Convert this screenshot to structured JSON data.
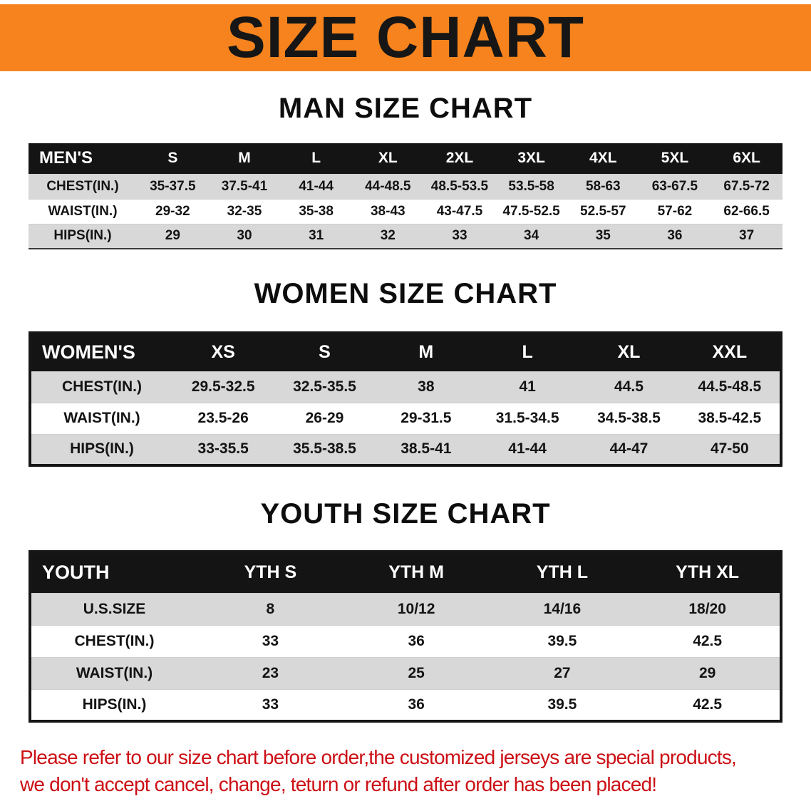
{
  "banner": {
    "title": "SIZE CHART"
  },
  "colors": {
    "banner_bg": "#f6831d",
    "header_bg": "#141414",
    "row_alt": "#d8d8d8",
    "red": "#cc1016"
  },
  "men": {
    "heading": "MAN SIZE CHART",
    "table": {
      "header": [
        "MEN'S",
        "S",
        "M",
        "L",
        "XL",
        "2XL",
        "3XL",
        "4XL",
        "5XL",
        "6XL"
      ],
      "rows": [
        {
          "label": "CHEST(IN.)",
          "values": [
            "35-37.5",
            "37.5-41",
            "41-44",
            "44-48.5",
            "48.5-53.5",
            "53.5-58",
            "58-63",
            "63-67.5",
            "67.5-72"
          ]
        },
        {
          "label": "WAIST(IN.)",
          "values": [
            "29-32",
            "32-35",
            "35-38",
            "38-43",
            "43-47.5",
            "47.5-52.5",
            "52.5-57",
            "57-62",
            "62-66.5"
          ]
        },
        {
          "label": "HIPS(IN.)",
          "values": [
            "29",
            "30",
            "31",
            "32",
            "33",
            "34",
            "35",
            "36",
            "37"
          ]
        }
      ]
    }
  },
  "women": {
    "heading": "WOMEN SIZE CHART",
    "table": {
      "header": [
        "WOMEN'S",
        "XS",
        "S",
        "M",
        "L",
        "XL",
        "XXL"
      ],
      "rows": [
        {
          "label": "CHEST(IN.)",
          "values": [
            "29.5-32.5",
            "32.5-35.5",
            "38",
            "41",
            "44.5",
            "44.5-48.5"
          ]
        },
        {
          "label": "WAIST(IN.)",
          "values": [
            "23.5-26",
            "26-29",
            "29-31.5",
            "31.5-34.5",
            "34.5-38.5",
            "38.5-42.5"
          ]
        },
        {
          "label": "HIPS(IN.)",
          "values": [
            "33-35.5",
            "35.5-38.5",
            "38.5-41",
            "41-44",
            "44-47",
            "47-50"
          ]
        }
      ]
    }
  },
  "youth": {
    "heading": "YOUTH SIZE CHART",
    "table": {
      "header": [
        "YOUTH",
        "YTH S",
        "YTH M",
        "YTH L",
        "YTH XL"
      ],
      "rows": [
        {
          "label": "U.S.SIZE",
          "values": [
            "8",
            "10/12",
            "14/16",
            "18/20"
          ]
        },
        {
          "label": "CHEST(IN.)",
          "values": [
            "33",
            "36",
            "39.5",
            "42.5"
          ]
        },
        {
          "label": "WAIST(IN.)",
          "values": [
            "23",
            "25",
            "27",
            "29"
          ]
        },
        {
          "label": "HIPS(IN.)",
          "values": [
            "33",
            "36",
            "39.5",
            "42.5"
          ]
        }
      ]
    }
  },
  "disclaimer": {
    "line1": "Please refer to our size chart before order,the customized jerseys are special products,",
    "line2": "we don't accept cancel, change, teturn or refund after order has been placed!"
  }
}
